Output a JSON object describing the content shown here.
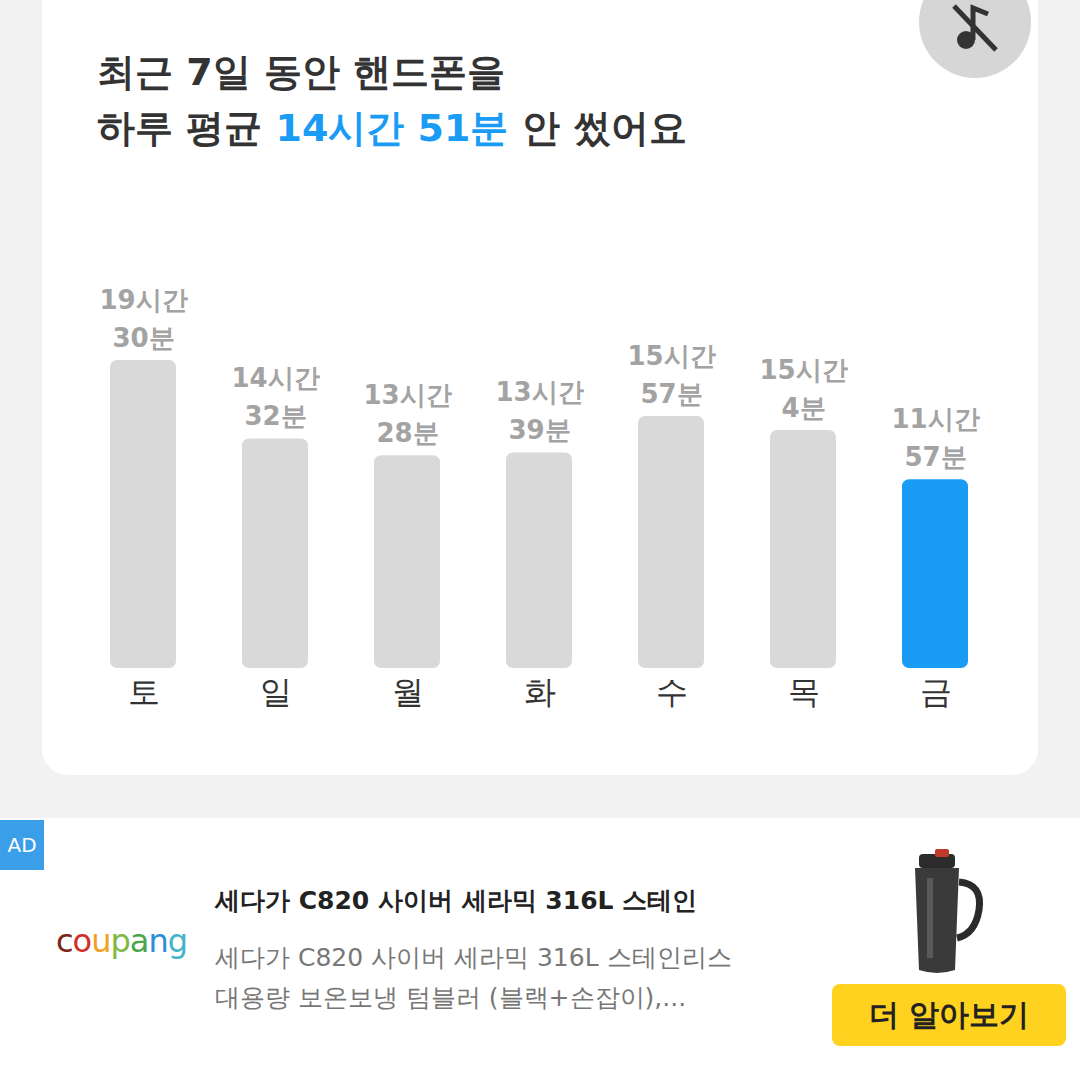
{
  "chart_data": {
    "type": "bar",
    "title": "최근 7일 동안 핸드폰을",
    "subtitle": "하루 평균 14시간 51분 안 썼어요",
    "highlight": "14시간 51분",
    "categories": [
      "토",
      "일",
      "월",
      "화",
      "수",
      "목",
      "금"
    ],
    "values": [
      1170,
      872,
      808,
      819,
      957,
      904,
      717
    ],
    "value_labels": [
      "19시간 30분",
      "14시간 32분",
      "13시간 28분",
      "13시간 39분",
      "15시간 57분",
      "15시간 4분",
      "11시간 57분"
    ],
    "colors": [
      "#d9d9d9",
      "#d9d9d9",
      "#d9d9d9",
      "#d9d9d9",
      "#d9d9d9",
      "#d9d9d9",
      "#1a9cf5"
    ],
    "ylim": [
      0,
      1170
    ],
    "yticks": [],
    "tick_labels": "x",
    "data_labels": true
  },
  "ad": {
    "badge": "AD",
    "brand": "coupang",
    "title": "세다가 C820 사이버 세라믹 316L 스테인",
    "description": [
      "세다가 C820 사이버 세라믹 316L 스테인리스",
      "대용량 보온보냉 텀블러 (블랙+손잡이),..."
    ],
    "button": "더 알아보기"
  }
}
